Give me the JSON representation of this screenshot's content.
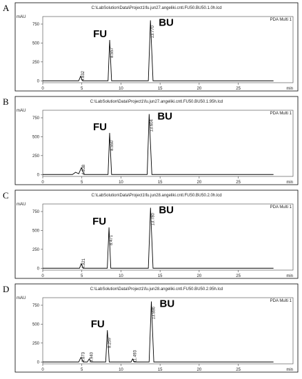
{
  "chart_data": [
    {
      "type": "line",
      "panel": "A",
      "title": "C:\\LabSolution\\Data\\Project1\\fu.jun27.angeliki.cntl.FU50.BU50.1.0h.lcd",
      "ylabel": "mAU",
      "xlabel": "min",
      "x": [
        0,
        4.6,
        4.832,
        5.1,
        8.35,
        8.557,
        8.8,
        13.5,
        13.77,
        14.1,
        29.5
      ],
      "series": [
        {
          "name": "PDA Multi 1",
          "color": "#000000",
          "values": [
            0,
            0,
            60,
            0,
            0,
            540,
            0,
            0,
            800,
            0,
            0
          ]
        }
      ],
      "peaks": [
        4.832,
        8.557,
        {
          "value": 13.77,
          "label": "13.770"
        }
      ],
      "compounds": [
        "FU",
        "BU"
      ],
      "xlim": [
        0,
        32
      ],
      "xticks": [
        0,
        5,
        10,
        15,
        20,
        25
      ],
      "ylim": [
        -25,
        850
      ],
      "yticks": [
        0,
        250,
        500,
        750
      ]
    },
    {
      "type": "line",
      "panel": "B",
      "title": "C:\\LabSolution\\Data\\Project1\\fu.jun27.angeliki.cntl.FU50.BU50.1.95h.lcd",
      "ylabel": "mAU",
      "xlabel": "min",
      "x": [
        0,
        3.8,
        4.2,
        4.6,
        4.938,
        5.3,
        8.35,
        8.55,
        8.8,
        13.35,
        13.604,
        13.95,
        29.5
      ],
      "series": [
        {
          "name": "PDA Multi 1",
          "color": "#000000",
          "values": [
            0,
            0,
            30,
            10,
            90,
            0,
            0,
            550,
            0,
            0,
            800,
            0,
            0
          ]
        }
      ],
      "peaks": [
        4.938,
        {
          "value": 8.55,
          "label": "8.550"
        },
        13.604
      ],
      "compounds": [
        "FU",
        "BU"
      ],
      "xlim": [
        0,
        32
      ],
      "xticks": [
        0,
        5,
        10,
        15,
        20,
        25
      ],
      "ylim": [
        -25,
        850
      ],
      "yticks": [
        0,
        250,
        500,
        750
      ]
    },
    {
      "type": "line",
      "panel": "C",
      "title": "C:\\LabSolution\\Data\\Project1\\fu.jun28.angeliki.cntl.FU50.BU50.2.0h.lcd",
      "ylabel": "mAU",
      "xlabel": "min",
      "x": [
        0,
        4.7,
        4.921,
        5.15,
        8.25,
        8.471,
        8.7,
        13.5,
        13.78,
        14.1,
        29.5
      ],
      "series": [
        {
          "name": "PDA Multi 1",
          "color": "#000000",
          "values": [
            0,
            0,
            60,
            0,
            0,
            540,
            0,
            0,
            800,
            0,
            0
          ]
        }
      ],
      "peaks": [
        4.921,
        8.471,
        {
          "value": 13.78,
          "label": "13.780"
        }
      ],
      "compounds": [
        "FU",
        "BU"
      ],
      "xlim": [
        0,
        32
      ],
      "xticks": [
        0,
        5,
        10,
        15,
        20,
        25
      ],
      "ylim": [
        -25,
        850
      ],
      "yticks": [
        0,
        250,
        500,
        750
      ]
    },
    {
      "type": "line",
      "panel": "D",
      "title": "C:\\LabSolution\\Data\\Project1\\fu.jun28.angeliki.cntl.FU50.BU50.2.95h.lcd",
      "ylabel": "mAU",
      "xlabel": "min",
      "x": [
        0,
        4.6,
        4.873,
        5.2,
        5.7,
        5.94,
        6.2,
        8.05,
        8.259,
        8.5,
        11.3,
        11.493,
        11.7,
        13.6,
        13.886,
        14.2,
        29.5
      ],
      "series": [
        {
          "name": "PDA Multi 1",
          "color": "#000000",
          "values": [
            0,
            0,
            60,
            0,
            0,
            40,
            0,
            0,
            420,
            0,
            0,
            40,
            0,
            0,
            800,
            0,
            0
          ]
        }
      ],
      "peaks": [
        4.873,
        {
          "value": 5.94,
          "label": "5.940"
        },
        8.259,
        11.493,
        13.886
      ],
      "compounds": [
        "FU",
        "BU"
      ],
      "xlim": [
        0,
        32
      ],
      "xticks": [
        0,
        5,
        10,
        15,
        20,
        25
      ],
      "ylim": [
        -25,
        850
      ],
      "yticks": [
        0,
        250,
        500,
        750
      ]
    }
  ]
}
